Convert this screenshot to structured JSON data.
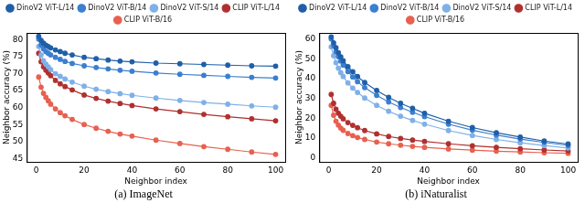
{
  "chart_data": [
    {
      "type": "line",
      "title": "(a) ImageNet",
      "x_label": "Neighbor index",
      "y_label": "Neighbor accuracy (%)",
      "x": [
        1,
        2,
        3,
        4,
        5,
        6,
        8,
        10,
        12,
        15,
        20,
        25,
        30,
        35,
        40,
        50,
        60,
        70,
        80,
        90,
        100
      ],
      "xlim": [
        -4,
        104
      ],
      "xticks": [
        0,
        20,
        40,
        60,
        80,
        100
      ],
      "ylim": [
        44,
        82
      ],
      "yticks": [
        45,
        50,
        55,
        60,
        65,
        70,
        75,
        80
      ],
      "grid": false,
      "legend": "top",
      "marker": "circle",
      "line_style": "solid",
      "series": [
        {
          "name": "DinoV2 ViT-L/14",
          "color": "#1f5fa8",
          "values": [
            81.0,
            79.8,
            79.0,
            78.4,
            78.0,
            77.6,
            77.0,
            76.5,
            76.0,
            75.5,
            74.8,
            74.4,
            74.0,
            73.7,
            73.5,
            73.1,
            72.9,
            72.7,
            72.5,
            72.3,
            72.2
          ]
        },
        {
          "name": "DinoV2 ViT-B/14",
          "color": "#3a7fd0",
          "values": [
            80.2,
            78.5,
            77.3,
            76.5,
            76.0,
            75.5,
            74.8,
            74.2,
            73.6,
            73.0,
            72.3,
            71.8,
            71.4,
            71.0,
            70.7,
            70.2,
            69.8,
            69.5,
            69.2,
            68.9,
            68.7
          ]
        },
        {
          "name": "DinoV2 ViT-S/14",
          "color": "#7fb0e8",
          "values": [
            78.0,
            75.5,
            73.8,
            72.8,
            72.0,
            71.2,
            70.0,
            69.2,
            68.4,
            67.5,
            66.3,
            65.4,
            64.7,
            64.1,
            63.6,
            62.8,
            62.1,
            61.5,
            61.0,
            60.5,
            60.1
          ]
        },
        {
          "name": "CLIP ViT-L/14",
          "color": "#b03030",
          "values": [
            76.0,
            73.5,
            72.0,
            71.0,
            70.2,
            69.4,
            68.0,
            67.0,
            66.2,
            65.2,
            63.7,
            62.7,
            61.9,
            61.2,
            60.6,
            59.6,
            58.8,
            58.0,
            57.3,
            56.7,
            56.1
          ]
        },
        {
          "name": "CLIP ViT-B/16",
          "color": "#e8604f",
          "values": [
            69.0,
            66.0,
            64.2,
            63.0,
            62.0,
            61.0,
            59.6,
            58.5,
            57.6,
            56.5,
            55.0,
            53.9,
            53.0,
            52.2,
            51.6,
            50.4,
            49.4,
            48.5,
            47.7,
            46.9,
            46.2
          ]
        }
      ]
    },
    {
      "type": "line",
      "title": "(b) iNaturalist",
      "x_label": "Neighbor index",
      "y_label": "Neighbor accuracy (%)",
      "x": [
        1,
        2,
        3,
        4,
        5,
        6,
        8,
        10,
        12,
        15,
        20,
        25,
        30,
        35,
        40,
        50,
        60,
        70,
        80,
        90,
        100
      ],
      "xlim": [
        -4,
        104
      ],
      "xticks": [
        0,
        20,
        40,
        60,
        80,
        100
      ],
      "ylim": [
        -2,
        63
      ],
      "yticks": [
        0,
        10,
        20,
        30,
        40,
        50,
        60
      ],
      "grid": false,
      "legend": "top",
      "marker": "circle",
      "line_style": "solid",
      "series": [
        {
          "name": "DinoV2 ViT-L/14",
          "color": "#1f5fa8",
          "values": [
            61.0,
            58.0,
            55.5,
            53.0,
            51.0,
            49.0,
            46.0,
            43.5,
            41.0,
            38.0,
            34.0,
            30.5,
            27.5,
            25.0,
            22.5,
            18.5,
            15.3,
            12.7,
            10.5,
            8.5,
            7.0
          ]
        },
        {
          "name": "DinoV2 ViT-B/14",
          "color": "#3a7fd0",
          "values": [
            60.0,
            56.5,
            53.5,
            51.0,
            48.8,
            46.8,
            43.5,
            40.8,
            38.4,
            35.4,
            31.5,
            28.2,
            25.4,
            23.0,
            20.8,
            17.0,
            14.0,
            11.5,
            9.5,
            7.8,
            6.3
          ]
        },
        {
          "name": "DinoV2 ViT-S/14",
          "color": "#7fb0e8",
          "values": [
            56.0,
            51.5,
            48.0,
            45.2,
            43.0,
            41.0,
            37.8,
            35.2,
            33.0,
            30.2,
            26.5,
            23.5,
            21.0,
            18.9,
            17.0,
            13.8,
            11.3,
            9.3,
            7.6,
            6.2,
            5.0
          ]
        },
        {
          "name": "CLIP ViT-L/14",
          "color": "#b03030",
          "values": [
            32.0,
            27.5,
            24.5,
            22.5,
            21.0,
            19.7,
            17.8,
            16.4,
            15.2,
            13.8,
            12.1,
            10.8,
            9.8,
            9.0,
            8.3,
            7.1,
            6.1,
            5.3,
            4.6,
            4.0,
            3.5
          ]
        },
        {
          "name": "CLIP ViT-B/16",
          "color": "#e8604f",
          "values": [
            26.5,
            21.5,
            18.5,
            16.5,
            15.0,
            13.9,
            12.3,
            11.2,
            10.3,
            9.3,
            8.0,
            7.1,
            6.4,
            5.8,
            5.3,
            4.5,
            3.9,
            3.4,
            3.0,
            2.6,
            2.3
          ]
        }
      ]
    }
  ]
}
